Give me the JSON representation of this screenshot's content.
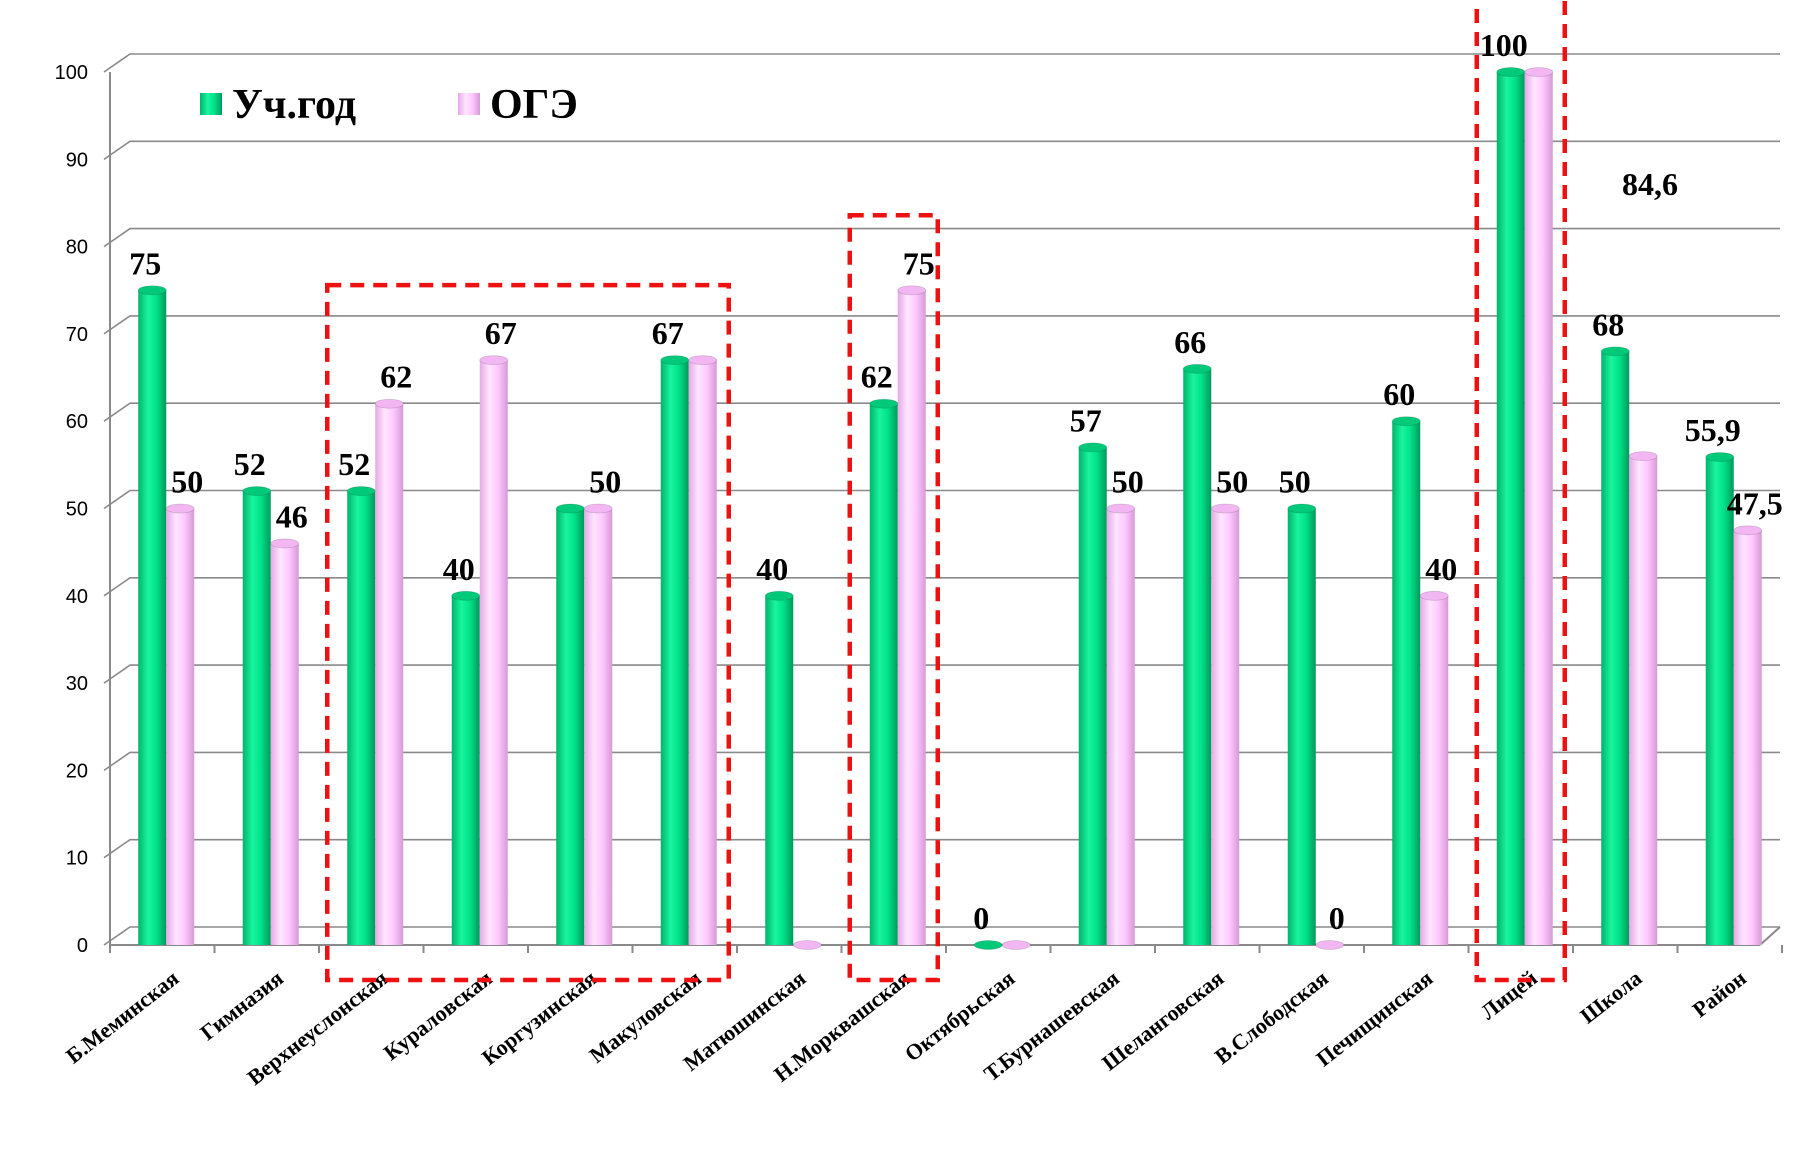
{
  "chart_data": {
    "type": "bar",
    "categories": [
      "Б.Меминская",
      "Гимназия",
      "Верхнеуслонская",
      "Куралoвская",
      "Коргузинская",
      "Макуловская",
      "Матюшинская",
      "Н.Морквашская",
      "Октябрьская",
      "Т.Бурнашевская",
      "Шеланговская",
      "В.Слободская",
      "Печищинская",
      "Лицей",
      "Школа",
      "Район"
    ],
    "series": [
      {
        "name": "Уч.год",
        "color": "#00e28a",
        "values": [
          75,
          52,
          52,
          40,
          50,
          67,
          40,
          62,
          0,
          57,
          66,
          50,
          60,
          100,
          68,
          55.9
        ],
        "labels": [
          "75",
          "52",
          "52",
          "40",
          "",
          "67",
          "40",
          "62",
          "0",
          "57",
          "66",
          "50",
          "60",
          "100",
          "68",
          "55,9"
        ]
      },
      {
        "name": "ОГЭ",
        "color": "#ffc8ff",
        "values": [
          50,
          46,
          62,
          67,
          50,
          67,
          0,
          75,
          0,
          50,
          50,
          0,
          40,
          100,
          56,
          47.5
        ],
        "labels": [
          "50",
          "46",
          "62",
          "67",
          "50",
          "",
          "",
          "75",
          "",
          "50",
          "50",
          "0",
          "40",
          "",
          "",
          "47,5"
        ]
      }
    ],
    "annotations": [
      "84,6"
    ],
    "yticks": [
      "0",
      "10",
      "20",
      "30",
      "40",
      "50",
      "60",
      "70",
      "80",
      "90",
      "100"
    ],
    "ylim": [
      0,
      100
    ],
    "grid": true,
    "legend": "top-left",
    "highlight_color": "#ee1111",
    "highlight_groups": [
      [
        2,
        5
      ],
      [
        7,
        7
      ],
      [
        13,
        13
      ]
    ]
  }
}
